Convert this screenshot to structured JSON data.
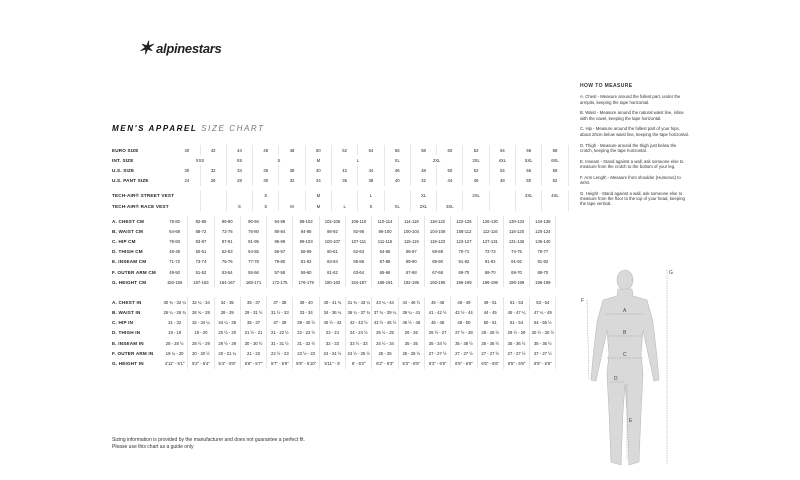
{
  "brand": {
    "name": "alpinestars"
  },
  "title": {
    "bold": "MEN'S APPAREL",
    "light": "SIZE CHART"
  },
  "sizes": {
    "euro": {
      "label": "EURO SIZE",
      "values": [
        "40",
        "42",
        "44",
        "46",
        "48",
        "50",
        "52",
        "54",
        "56",
        "58",
        "60",
        "62",
        "64",
        "66",
        "68"
      ]
    },
    "int": {
      "label": "INT. SIZE",
      "values": [
        [
          "XXS",
          2
        ],
        [
          "XS",
          1
        ],
        [
          "S",
          2
        ],
        [
          "M",
          1
        ],
        [
          "L",
          2
        ],
        [
          "XL",
          1
        ],
        [
          "2XL",
          2
        ],
        [
          "3XL",
          1
        ],
        [
          "4XL",
          1
        ],
        [
          "5XL",
          1
        ],
        [
          "6XL",
          1
        ]
      ]
    },
    "us": {
      "label": "U.S. SIZE",
      "values": [
        "30",
        "32",
        "34",
        "36",
        "38",
        "40",
        "42",
        "44",
        "46",
        "48",
        "50",
        "52",
        "54",
        "56",
        "58"
      ]
    },
    "us_pant": {
      "label": "U.S. PANT SIZE",
      "values": [
        "24",
        "26",
        "28",
        "30",
        "32",
        "34",
        "36",
        "38",
        "40",
        "42",
        "44",
        "46",
        "48",
        "50",
        "52"
      ]
    }
  },
  "vests": {
    "street": {
      "label": "TECH-AIR® STREET VEST",
      "values": [
        "",
        "",
        "",
        "S",
        "",
        "M",
        "",
        "L",
        "",
        "XL",
        "",
        "2XL",
        "",
        "3XL",
        "4XL"
      ]
    },
    "race": {
      "label": "TECH-AIR® RACE VEST",
      "values": [
        "",
        "",
        "S",
        "S",
        "M",
        "M",
        "L",
        "S",
        "XL",
        "2XL",
        "3XL",
        "",
        "",
        "",
        ""
      ]
    }
  },
  "cm_rows": [
    {
      "label": "A. CHEST CM",
      "values": [
        "78-82",
        "82-86",
        "86-90",
        "90-94",
        "94-98",
        "98-102",
        "102-106",
        "106-110",
        "110-114",
        "114-118",
        "118-122",
        "122-126",
        "126-130",
        "130-134",
        "134-138"
      ]
    },
    {
      "label": "B. WAIST CM",
      "values": [
        "64-68",
        "68-72",
        "72-76",
        "76-80",
        "80-84",
        "84-88",
        "88-92",
        "92-96",
        "96-100",
        "100-104",
        "104-108",
        "108-112",
        "112-116",
        "116-120",
        "120-124"
      ]
    },
    {
      "label": "C. HIP CM",
      "values": [
        "79-83",
        "83-87",
        "87-91",
        "91-95",
        "95-99",
        "99-103",
        "103-107",
        "107-111",
        "111-115",
        "115-119",
        "119-123",
        "123-127",
        "127-131",
        "131-136",
        "136-140"
      ]
    },
    {
      "label": "D. THIGH CM",
      "values": [
        "48-49",
        "50-51",
        "52-53",
        "54-55",
        "56-57",
        "58-59",
        "60-61",
        "62-63",
        "64-65",
        "66-67",
        "68-69",
        "70-71",
        "72-73",
        "74-75",
        "76-77"
      ]
    },
    {
      "label": "E. INSEAM CM",
      "values": [
        "71-72",
        "73-74",
        "75-76",
        "77-78",
        "79-80",
        "81-82",
        "83-84",
        "85-86",
        "87-88",
        "89-90",
        "89-90",
        "91-92",
        "91-92",
        "91-92",
        "91-92"
      ]
    },
    {
      "label": "F. OUTER ARM CM",
      "values": [
        "49-50",
        "51-52",
        "53-54",
        "55-56",
        "57-58",
        "59-60",
        "61-62",
        "63-64",
        "65-66",
        "67-68",
        "67-68",
        "69-70",
        "69-70",
        "69-70",
        "69-70"
      ]
    },
    {
      "label": "G. HEIGHT CM",
      "values": [
        "150-156",
        "157-163",
        "164-167",
        "168-171",
        "172-175",
        "176-179",
        "180-183",
        "184-187",
        "188-191",
        "192-195",
        "192-195",
        "196-199",
        "196-199",
        "196-199",
        "196-199"
      ]
    }
  ],
  "in_rows": [
    {
      "label": "A. CHEST IN",
      "values": [
        "30 ¾ - 32 ¼",
        "32 ¼ - 34",
        "34 - 35",
        "35 - 37",
        "37 - 38",
        "38 - 40",
        "40 - 41 ¾",
        "41 ¾ - 43 ¼",
        "43 ¼ - 44",
        "44 - 46 ½",
        "46 - 48",
        "48 - 49",
        "49 - 51",
        "51 - 53",
        "53 - 54"
      ]
    },
    {
      "label": "B. WAIST IN",
      "values": [
        "25 ¼ - 26 ¾",
        "26 ¾ - 28",
        "28 - 29",
        "29 - 31 ½",
        "31 ½ - 33",
        "33 - 34",
        "34 - 36 ¼",
        "36 ¼ - 37 ¾",
        "37 ¾ - 39 ¼",
        "39 ¼ - 41",
        "41 - 42 ½",
        "42 ½ - 44",
        "44 - 45",
        "45 - 47 ¼",
        "47 ¼ - 49"
      ]
    },
    {
      "label": "C. HIP IN",
      "values": [
        "31 - 32",
        "32 - 34 ¼",
        "34 ¼ - 35",
        "35 - 37",
        "37 - 39",
        "39 - 40 ½",
        "40 ½ - 42",
        "42 - 43 ½",
        "43 ½ - 45 ½",
        "45 ½ - 46",
        "46 - 48",
        "48 - 50",
        "50 - 51",
        "51 - 54",
        "54 - 55 ½"
      ]
    },
    {
      "label": "D. THIGH IN",
      "values": [
        "19 - 19",
        "19 - 20",
        "20 ½ - 20",
        "21 ½ - 21",
        "21 - 22 ½",
        "22 - 23 ½",
        "23 - 24",
        "24 - 24 ½",
        "25 ½ - 25",
        "26 - 26",
        "26 ½ - 27",
        "27 ½ - 28",
        "28 - 28 ½",
        "29 ½ - 29",
        "30 ½ - 30 ½"
      ]
    },
    {
      "label": "E. INSEAM IN",
      "values": [
        "28 - 28 ½",
        "28 ½ - 29",
        "29 ½ - 29",
        "30 - 30 ½",
        "31 - 31 ½",
        "31 - 32 ½",
        "32 - 33",
        "33 ½ - 33",
        "34 ½ - 34",
        "35 - 35",
        "35 - 34 ½",
        "35 - 36 ½",
        "35 - 36 ½",
        "35 - 36 ½",
        "35 - 36 ½"
      ]
    },
    {
      "label": "F. OUTER ARM IN",
      "values": [
        "19 ¼ - 20",
        "20 - 20 ½",
        "20 - 21 ¼",
        "21 - 22",
        "22 ½ - 23",
        "23 ½ - 23",
        "24 - 24 ½",
        "24 ½ - 25 ½",
        "25 - 26",
        "26 - 26 ½",
        "27 - 27 ½",
        "27 - 27 ½",
        "27 - 27 ½",
        "27 - 27 ½",
        "27 - 27 ½"
      ]
    },
    {
      "label": "G. HEIGHT IN",
      "values": [
        "4'11\" - 5'1\"",
        "5'2\" - 5'4\"",
        "5'4\" - 5'6\"",
        "5'6\" - 5'7\"",
        "5'7\" - 5'9\"",
        "5'9\" - 5'10\"",
        "5'11\" - 6'",
        "6' - 6'2\"",
        "6'2\" - 6'3\"",
        "6'3\" - 6'5\"",
        "6'3\" - 6'5\"",
        "6'5\" - 6'6\"",
        "6'5\" - 6'6\"",
        "6'5\" - 6'6\"",
        "6'5\" - 6'6\""
      ]
    }
  ],
  "disclaimer": {
    "line1": "Sizing information is provided by the manufacturer and does not guarantee a perfect fit.",
    "line2": "Please use this chart as a guide only"
  },
  "how_to_measure": {
    "heading": "HOW TO MEASURE",
    "items": [
      "A. Chest - Measure around the fullest part, under the armpits, keeping the tape horizontal.",
      "B. Waist - Measure around the natural waist line, inline with the navel, keeping the tape horizontal.",
      "C. Hip - Measure around the fullest part of your hips, about 20cm below waist line, keeping the tape horizontal.",
      "D. Thigh - Measure around the thigh just below the crotch, keeping the tape horizontal.",
      "E. Inseam - Stand against a wall, ask someone else to measure from the crotch to the bottom of your leg.",
      "F. Arm Length - Measure from shoulder (Humerus) to wrist.",
      "G. Height - Stand against a wall, ask someone else to measure from the floor to the top of your head, keeping the tape vertical."
    ],
    "figure_labels": [
      "A",
      "B",
      "C",
      "D",
      "E",
      "F",
      "G"
    ]
  }
}
